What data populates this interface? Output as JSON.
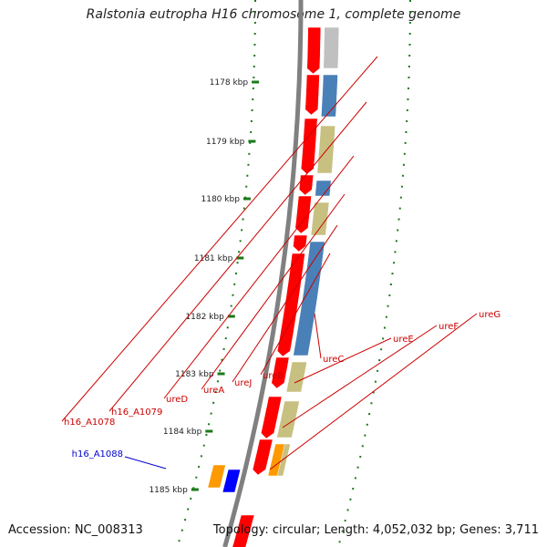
{
  "title": "Ralstonia eutropha H16 chromosome 1, complete genome",
  "footer": {
    "accession": "Accession: NC_008313",
    "stats": "Topology: circular; Length: 4,052,032 bp; Genes: 3,711"
  },
  "colors": {
    "backbone": "#808080",
    "tick": "#1a7a1a",
    "cds_forward": "#ff0000",
    "cds_reverse": "#4a80b8",
    "ure_cog": "#c8c080",
    "orange_gene": "#ff9900",
    "blue_gene": "#0000ff",
    "label_red": "#cc0000",
    "label_blue": "#0000cc"
  },
  "scale": {
    "labels": [
      "1178 kbp",
      "1179 kbp",
      "1180 kbp",
      "1181 kbp",
      "1182 kbp",
      "1183 kbp",
      "1184 kbp",
      "1185 kbp"
    ]
  },
  "gene_labels": [
    {
      "text": "h16_A1078",
      "color": "red"
    },
    {
      "text": "h16_A1079",
      "color": "red"
    },
    {
      "text": "ureD",
      "color": "red"
    },
    {
      "text": "ureA",
      "color": "red"
    },
    {
      "text": "ureJ",
      "color": "red"
    },
    {
      "text": "ureB",
      "color": "red"
    },
    {
      "text": "ureC",
      "color": "red"
    },
    {
      "text": "ureE",
      "color": "red"
    },
    {
      "text": "ureF",
      "color": "red"
    },
    {
      "text": "ureG",
      "color": "red"
    },
    {
      "text": "h16_A1088",
      "color": "blue"
    }
  ]
}
